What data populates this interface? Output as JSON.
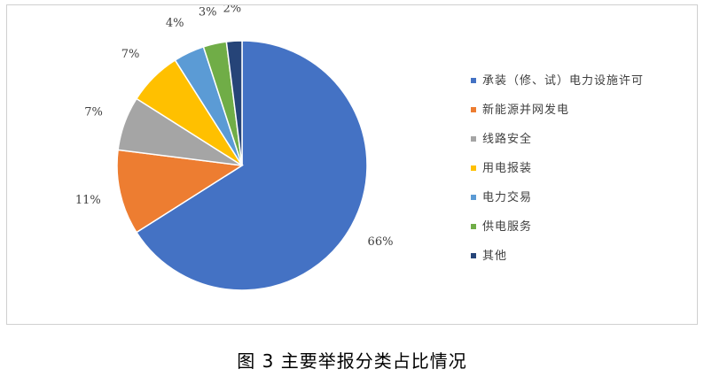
{
  "chart_data": {
    "type": "pie",
    "categories": [
      "承装（修、试）电力设施许可",
      "新能源并网发电",
      "线路安全",
      "用电报装",
      "电力交易",
      "供电服务",
      "其他"
    ],
    "values": [
      66,
      11,
      7,
      7,
      4,
      3,
      2
    ],
    "labels": [
      "66%",
      "11%",
      "7%",
      "7%",
      "4%",
      "3%",
      "2%"
    ],
    "colors": [
      "#4472C4",
      "#ED7D31",
      "#A5A5A5",
      "#FFC000",
      "#5B9BD5",
      "#70AD47",
      "#264478"
    ],
    "legend_position": "right",
    "start_angle": "12 o'clock",
    "direction": "clockwise"
  },
  "caption": "图 3 主要举报分类占比情况"
}
